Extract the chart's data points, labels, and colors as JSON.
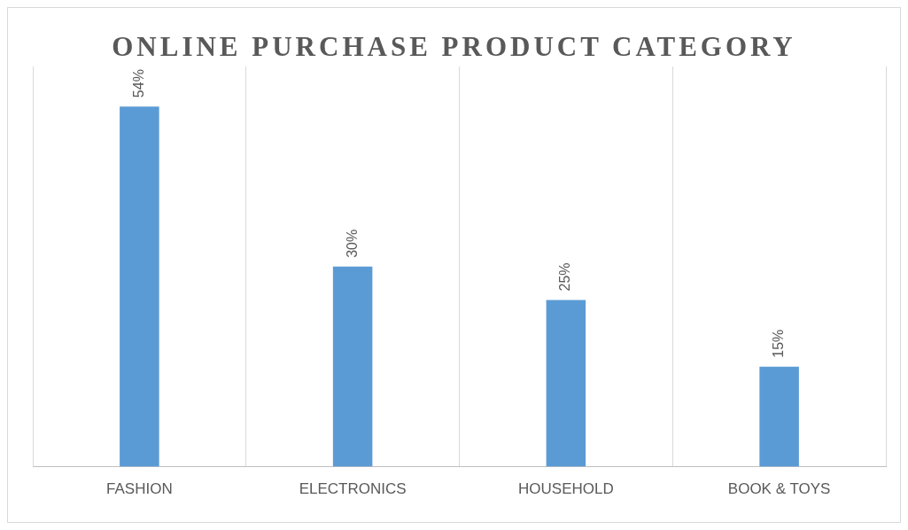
{
  "chart_data": {
    "type": "bar",
    "title": "ONLINE PURCHASE PRODUCT CATEGORY",
    "categories": [
      "FASHION",
      "ELECTRONICS",
      "HOUSEHOLD",
      "BOOK & TOYS"
    ],
    "values": [
      54,
      30,
      25,
      15
    ],
    "value_labels": [
      "54%",
      "30%",
      "25%",
      "15%"
    ],
    "color": "#5b9bd5",
    "grid": "x"
  }
}
